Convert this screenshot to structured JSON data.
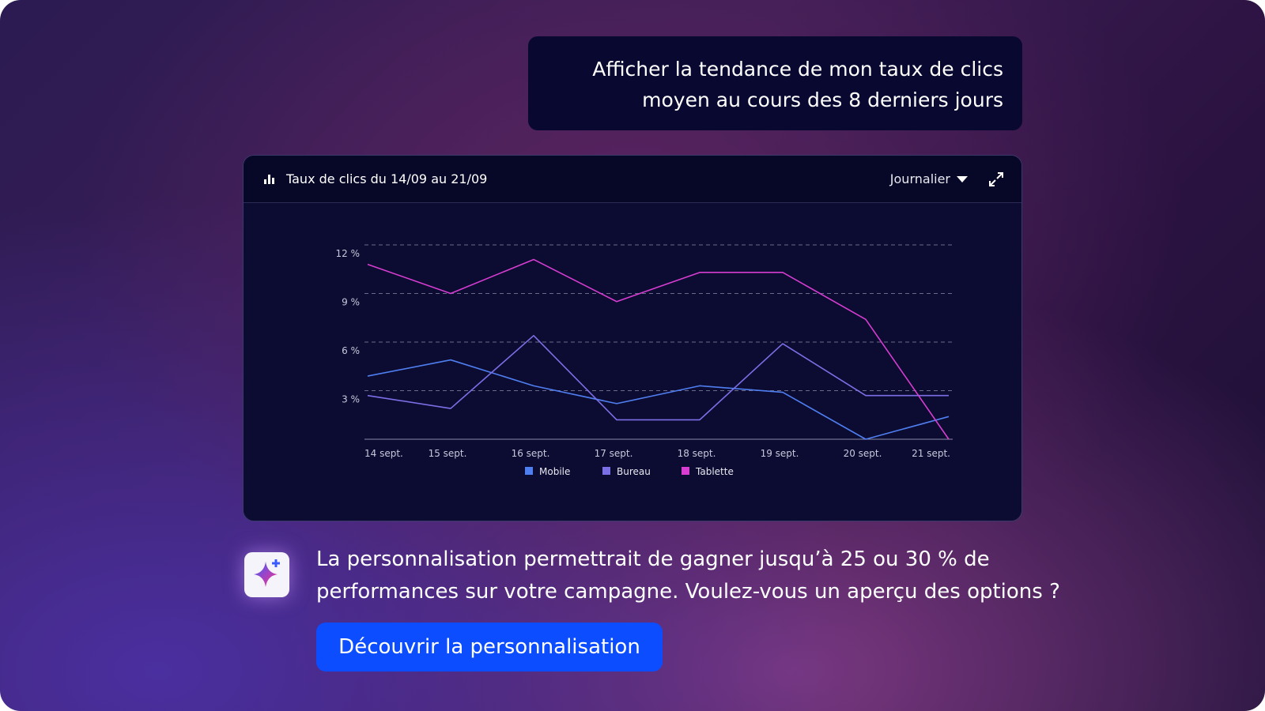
{
  "user_message": [
    "Afficher la tendance de mon taux de clics",
    "moyen au cours des 8 derniers jours"
  ],
  "panel": {
    "title": "Taux de clics du 14/09 au 21/09",
    "period": "Journalier"
  },
  "chart_data": {
    "type": "line",
    "categories": [
      "14 sept.",
      "15 sept.",
      "16 sept.",
      "17 sept.",
      "18 sept.",
      "19 sept.",
      "20 sept.",
      "21 sept."
    ],
    "series": [
      {
        "name": "Mobile",
        "color": "#4f7ef0",
        "values": [
          3.9,
          4.9,
          3.3,
          2.2,
          3.3,
          2.9,
          0,
          1.4
        ]
      },
      {
        "name": "Bureau",
        "color": "#7b6fe6",
        "values": [
          2.7,
          1.9,
          6.4,
          1.2,
          1.2,
          5.9,
          2.7,
          2.7
        ]
      },
      {
        "name": "Tablette",
        "color": "#d63dd0",
        "values": [
          10.8,
          9,
          11.1,
          8.5,
          10.3,
          10.3,
          7.4,
          0
        ]
      }
    ],
    "ylim": [
      0,
      12
    ],
    "yticks": [
      {
        "value": 3,
        "label": "3 %"
      },
      {
        "value": 6,
        "label": "6 %"
      },
      {
        "value": 9,
        "label": "9 %"
      },
      {
        "value": 12,
        "label": "12 %"
      }
    ],
    "grid": true
  },
  "assistant_message": [
    "La personnalisation permettrait de gagner jusqu’à 25 ou 30 % de",
    "performances sur votre campagne. Voulez-vous un aperçu des options ?"
  ],
  "button": "Découvrir la personnalisation"
}
